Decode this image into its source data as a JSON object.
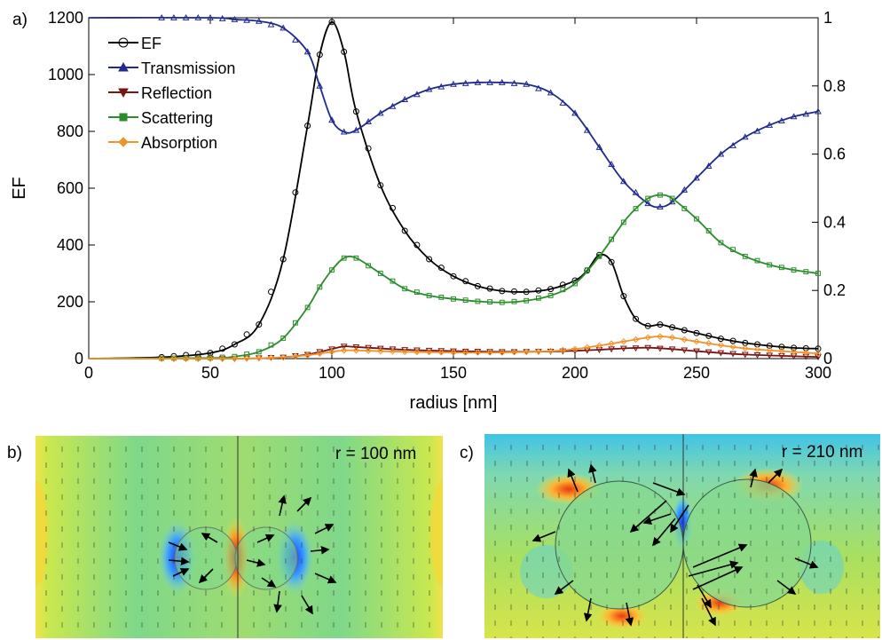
{
  "chart_data": [
    {
      "type": "line",
      "panel_label": "a)",
      "xlabel": "radius [nm]",
      "ylabel": "EF",
      "xlim": [
        0,
        300
      ],
      "ylim": [
        0,
        1200
      ],
      "y2lim": [
        0,
        1
      ],
      "xticks": [
        0,
        50,
        100,
        150,
        200,
        250,
        300
      ],
      "yticks": [
        0,
        200,
        400,
        600,
        800,
        1000,
        1200
      ],
      "y2ticks": [
        0,
        0.2,
        0.4,
        0.6,
        0.8,
        1
      ],
      "legend_position": "top-left",
      "grid": false,
      "series": [
        {
          "name": "EF",
          "axis": "left",
          "color": "#000000",
          "marker": "circle",
          "x": [
            0,
            30,
            50,
            60,
            70,
            80,
            90,
            95,
            100,
            105,
            110,
            120,
            130,
            140,
            150,
            160,
            170,
            180,
            190,
            200,
            205,
            210,
            215,
            220,
            225,
            230,
            235,
            240,
            250,
            260,
            270,
            280,
            290,
            300
          ],
          "y": [
            0,
            5,
            20,
            50,
            120,
            350,
            820,
            1070,
            1185,
            1080,
            870,
            610,
            450,
            350,
            290,
            255,
            238,
            235,
            245,
            275,
            310,
            365,
            340,
            220,
            140,
            115,
            120,
            110,
            90,
            70,
            55,
            45,
            38,
            35
          ]
        },
        {
          "name": "Transmission",
          "axis": "right",
          "color": "#1f2a8c",
          "marker": "triangle-up",
          "x": [
            0,
            50,
            60,
            70,
            80,
            90,
            95,
            100,
            105,
            110,
            120,
            130,
            140,
            150,
            160,
            170,
            180,
            190,
            200,
            210,
            220,
            230,
            235,
            240,
            250,
            260,
            270,
            280,
            290,
            300
          ],
          "y": [
            1.0,
            1.0,
            0.995,
            0.99,
            0.97,
            0.9,
            0.8,
            0.7,
            0.665,
            0.67,
            0.72,
            0.76,
            0.79,
            0.805,
            0.81,
            0.81,
            0.805,
            0.78,
            0.72,
            0.62,
            0.52,
            0.455,
            0.445,
            0.46,
            0.53,
            0.6,
            0.65,
            0.685,
            0.71,
            0.725
          ]
        },
        {
          "name": "Reflection",
          "axis": "right",
          "color": "#7a1414",
          "marker": "triangle-down",
          "x": [
            0,
            60,
            80,
            90,
            100,
            105,
            110,
            130,
            150,
            170,
            190,
            200,
            210,
            220,
            230,
            240,
            250,
            270,
            300
          ],
          "y": [
            0,
            0,
            0.004,
            0.012,
            0.028,
            0.036,
            0.034,
            0.026,
            0.022,
            0.02,
            0.021,
            0.023,
            0.026,
            0.03,
            0.032,
            0.028,
            0.022,
            0.012,
            0.005
          ]
        },
        {
          "name": "Scattering",
          "axis": "right",
          "color": "#2a8c2a",
          "marker": "square",
          "x": [
            0,
            50,
            60,
            70,
            80,
            90,
            95,
            100,
            105,
            110,
            120,
            130,
            140,
            150,
            160,
            170,
            180,
            190,
            200,
            210,
            220,
            225,
            230,
            235,
            240,
            250,
            260,
            270,
            280,
            290,
            300
          ],
          "y": [
            0,
            0.002,
            0.006,
            0.02,
            0.06,
            0.15,
            0.21,
            0.26,
            0.295,
            0.295,
            0.25,
            0.205,
            0.185,
            0.175,
            0.168,
            0.165,
            0.17,
            0.185,
            0.22,
            0.3,
            0.4,
            0.44,
            0.47,
            0.48,
            0.47,
            0.41,
            0.34,
            0.3,
            0.275,
            0.26,
            0.25
          ]
        },
        {
          "name": "Absorption",
          "axis": "right",
          "color": "#f0932b",
          "marker": "diamond",
          "x": [
            0,
            60,
            80,
            90,
            100,
            105,
            110,
            130,
            150,
            170,
            190,
            200,
            210,
            220,
            230,
            235,
            240,
            250,
            270,
            300
          ],
          "y": [
            0,
            0,
            0.004,
            0.01,
            0.02,
            0.024,
            0.024,
            0.02,
            0.018,
            0.018,
            0.022,
            0.028,
            0.038,
            0.05,
            0.062,
            0.065,
            0.062,
            0.05,
            0.03,
            0.015
          ]
        }
      ]
    },
    {
      "type": "heatmap",
      "panel_label": "b)",
      "annotation": "r = 100 nm"
    },
    {
      "type": "heatmap",
      "panel_label": "c)",
      "annotation": "r = 210 nm"
    }
  ]
}
